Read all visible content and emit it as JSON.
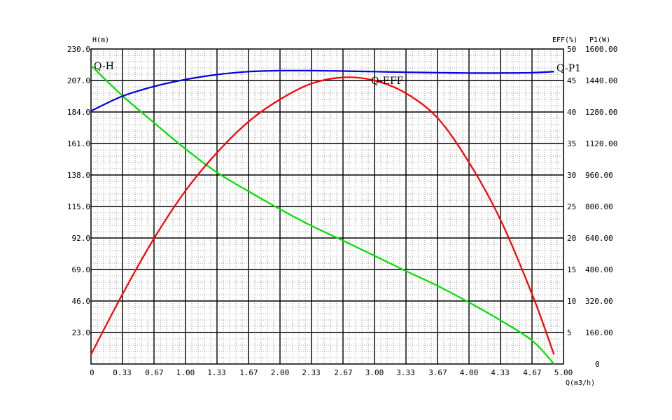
{
  "chart_data": {
    "type": "line",
    "x_axis": {
      "label": "Q(m3/h)",
      "range": [
        0,
        5.0
      ],
      "ticks": [
        0,
        0.33,
        0.67,
        1.0,
        1.33,
        1.67,
        2.0,
        2.33,
        2.67,
        3.0,
        3.33,
        3.67,
        4.0,
        4.33,
        4.67,
        5.0
      ],
      "tick_labels": [
        "0",
        "0.33",
        "0.67",
        "1.00",
        "1.33",
        "1.67",
        "2.00",
        "2.33",
        "2.67",
        "3.00",
        "3.33",
        "3.67",
        "4.00",
        "4.33",
        "4.67",
        "5.00"
      ]
    },
    "y_axis_left": {
      "label": "H(m)",
      "range": [
        0,
        230
      ],
      "tick_labels": [
        "",
        "23.0",
        "46.0",
        "69.0",
        "92.0",
        "115.0",
        "138.0",
        "161.0",
        "184.0",
        "207.0",
        "230.0"
      ]
    },
    "y_axis_eff": {
      "label": "EFF(%)",
      "range": [
        0,
        50
      ],
      "tick_labels": [
        "",
        "5",
        "10",
        "15",
        "20",
        "25",
        "30",
        "35",
        "40",
        "45",
        "50"
      ]
    },
    "y_axis_p1": {
      "label": "P1(W)",
      "range": [
        0,
        1600
      ],
      "tick_labels": [
        "0",
        "160.00",
        "320.00",
        "480.00",
        "640.00",
        "800.00",
        "960.00",
        "1120.00",
        "1280.00",
        "1440.00",
        "1600.00"
      ]
    },
    "grid": true,
    "series": [
      {
        "name": "Q-H",
        "axis": "left",
        "color": "#00e000",
        "x": [
          0,
          0.33,
          0.67,
          1.0,
          1.33,
          1.67,
          2.0,
          2.33,
          2.67,
          3.0,
          3.33,
          3.67,
          4.0,
          4.33,
          4.67,
          4.9
        ],
        "y": [
          218,
          196,
          176,
          157,
          140,
          126,
          113,
          101,
          90,
          79,
          68,
          57,
          45,
          32,
          17,
          0
        ]
      },
      {
        "name": "Q-EFF",
        "axis": "eff",
        "color": "#ff0000",
        "x": [
          0,
          0.33,
          0.67,
          1.0,
          1.33,
          1.67,
          2.0,
          2.33,
          2.67,
          3.0,
          3.33,
          3.67,
          4.0,
          4.33,
          4.67,
          4.9
        ],
        "y": [
          1.5,
          11,
          20,
          27.5,
          33.5,
          38.5,
          42,
          44.5,
          45.5,
          45,
          43,
          39,
          32,
          23,
          11,
          1.5
        ]
      },
      {
        "name": "Q-P1",
        "axis": "p1",
        "color": "#0000e0",
        "x": [
          0,
          0.33,
          0.67,
          1.0,
          1.33,
          1.67,
          2.0,
          2.33,
          2.67,
          3.0,
          3.33,
          3.67,
          4.0,
          4.33,
          4.67,
          4.9
        ],
        "y": [
          1285,
          1360,
          1410,
          1445,
          1470,
          1485,
          1490,
          1490,
          1488,
          1485,
          1482,
          1480,
          1478,
          1478,
          1480,
          1485
        ]
      }
    ]
  }
}
